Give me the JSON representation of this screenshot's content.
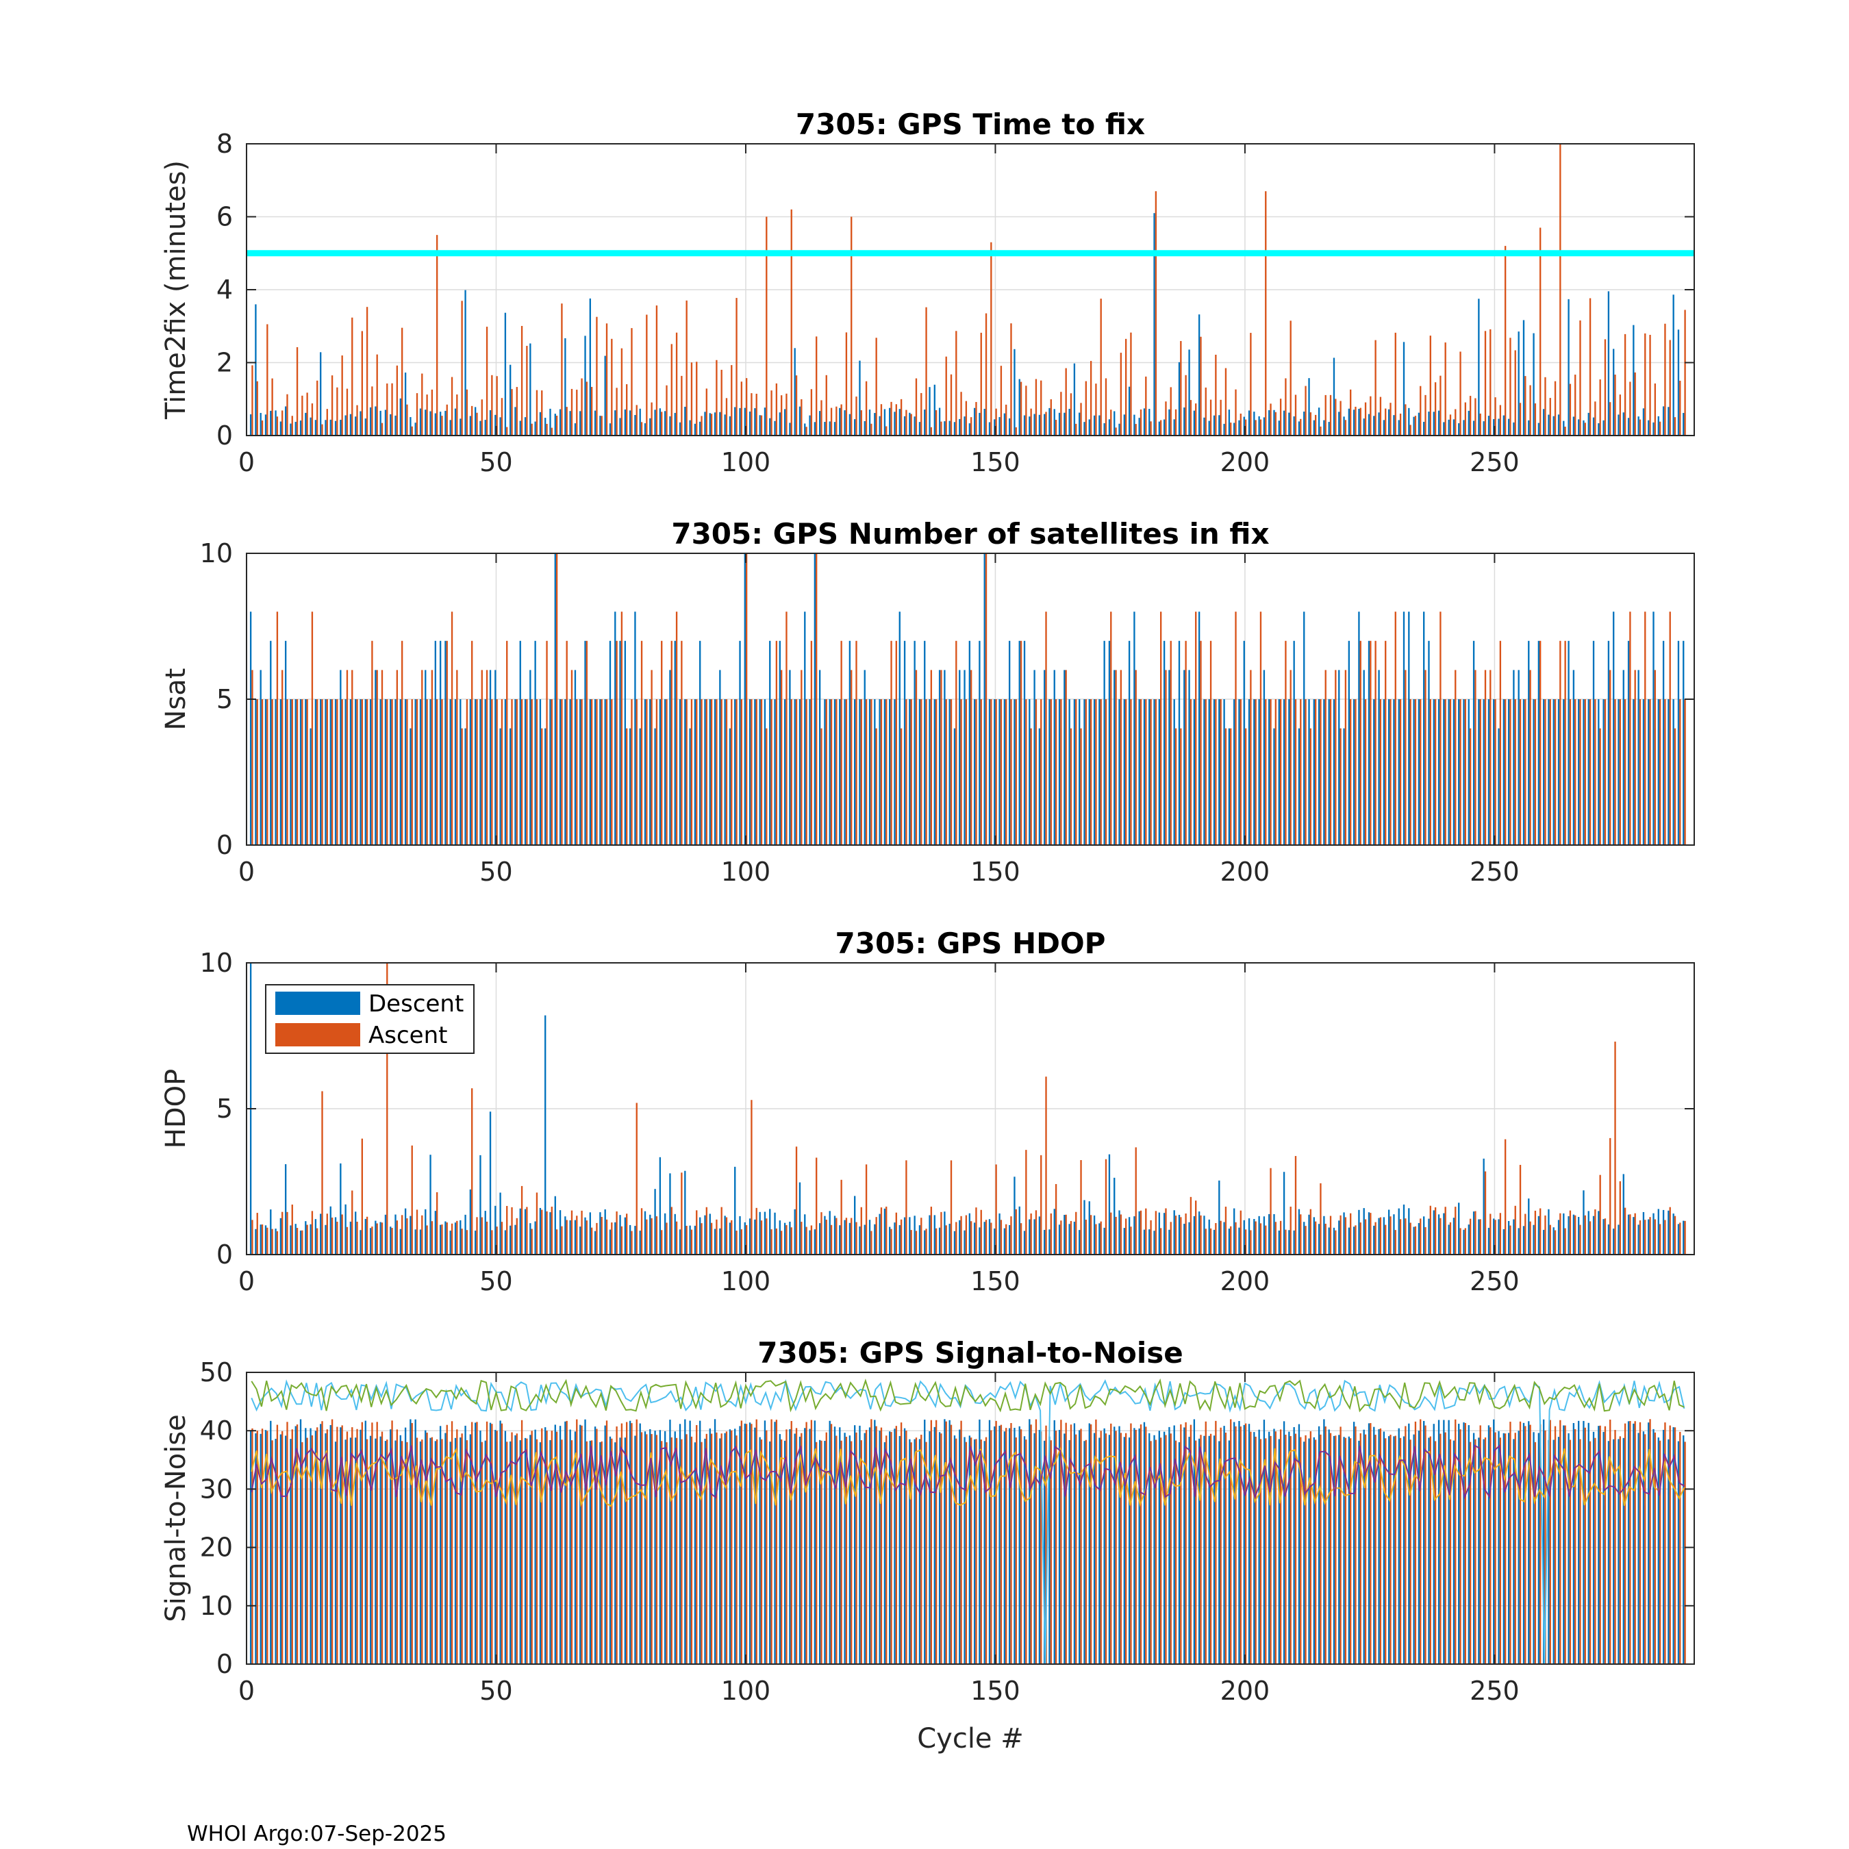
{
  "footer": "WHOI Argo:07-Sep-2025",
  "colors": {
    "descent": "#0072BD",
    "ascent": "#D95319",
    "threshold": "#00FFFF",
    "grid": "#DCDCDC",
    "axes": "#262626",
    "snr_lines": [
      "#4DBEEE",
      "#77AC30",
      "#EDB120",
      "#7E2F8E"
    ]
  },
  "legend": {
    "descent": "Descent",
    "ascent": "Ascent"
  },
  "chart_data": [
    {
      "type": "bar",
      "title": "7305: GPS Time to fix",
      "xlabel": "",
      "ylabel": "Time2fix (minutes)",
      "xlim": [
        0,
        290
      ],
      "ylim": [
        0,
        8
      ],
      "xticks": [
        "0",
        "50",
        "100",
        "150",
        "200",
        "250"
      ],
      "yticks": [
        "0",
        "2",
        "4",
        "6",
        "8"
      ],
      "threshold": 5,
      "series_summary": {
        "descent": {
          "typical": 0.8,
          "max": 6.1,
          "cycles_max": [
            182
          ]
        },
        "ascent": {
          "typical": 2.0,
          "max": 8.0,
          "cycles_max": [
            263
          ]
        }
      },
      "notable_ascent": [
        {
          "x": 38,
          "y": 5.5
        },
        {
          "x": 104,
          "y": 6.0
        },
        {
          "x": 109,
          "y": 6.2
        },
        {
          "x": 121,
          "y": 6.0
        },
        {
          "x": 149,
          "y": 5.3
        },
        {
          "x": 182,
          "y": 6.7
        },
        {
          "x": 204,
          "y": 6.7
        },
        {
          "x": 252,
          "y": 5.2
        },
        {
          "x": 259,
          "y": 5.7
        },
        {
          "x": 263,
          "y": 8.0
        }
      ]
    },
    {
      "type": "bar",
      "title": "7305: GPS Number of satellites in fix",
      "xlabel": "",
      "ylabel": "Nsat",
      "xlim": [
        0,
        290
      ],
      "ylim": [
        0,
        10
      ],
      "xticks": [
        "0",
        "50",
        "100",
        "150",
        "200",
        "250"
      ],
      "yticks": [
        "0",
        "5",
        "10"
      ],
      "series_summary": {
        "descent": {
          "typical": 5,
          "range": [
            4,
            10
          ]
        },
        "ascent": {
          "typical": 5,
          "range": [
            3,
            10
          ]
        }
      },
      "notable": [
        {
          "x": 62,
          "y": 10
        },
        {
          "x": 100,
          "y": 10
        },
        {
          "x": 114,
          "y": 10
        },
        {
          "x": 148,
          "y": 10
        }
      ]
    },
    {
      "type": "bar",
      "title": "7305: GPS HDOP",
      "xlabel": "",
      "ylabel": "HDOP",
      "xlim": [
        0,
        290
      ],
      "ylim": [
        0,
        10
      ],
      "xticks": [
        "0",
        "50",
        "100",
        "150",
        "200",
        "250"
      ],
      "yticks": [
        "0",
        "5",
        "10"
      ],
      "legend": [
        "Descent",
        "Ascent"
      ],
      "legend_position": "top-left",
      "series_summary": {
        "descent": {
          "typical": 1.1
        },
        "ascent": {
          "typical": 1.2
        }
      },
      "notable": [
        {
          "x": 1,
          "y": 10,
          "series": "Descent"
        },
        {
          "x": 15,
          "y": 5.6,
          "series": "Ascent"
        },
        {
          "x": 28,
          "y": 10,
          "series": "Ascent"
        },
        {
          "x": 45,
          "y": 5.7,
          "series": "Ascent"
        },
        {
          "x": 49,
          "y": 4.9,
          "series": "Descent"
        },
        {
          "x": 60,
          "y": 8.2,
          "series": "Descent"
        },
        {
          "x": 78,
          "y": 5.2,
          "series": "Ascent"
        },
        {
          "x": 101,
          "y": 5.3,
          "series": "Ascent"
        },
        {
          "x": 160,
          "y": 6.1,
          "series": "Ascent"
        },
        {
          "x": 274,
          "y": 7.3,
          "series": "Ascent"
        }
      ]
    },
    {
      "type": "bar+line",
      "title": "7305: GPS Signal-to-Noise",
      "xlabel": "Cycle #",
      "ylabel": "Signal-to-Noise",
      "xlim": [
        0,
        290
      ],
      "ylim": [
        0,
        50
      ],
      "xticks": [
        "0",
        "50",
        "100",
        "150",
        "200",
        "250"
      ],
      "yticks": [
        "0",
        "10",
        "20",
        "30",
        "40",
        "50"
      ],
      "series_summary": {
        "bars_descent": {
          "typical": 40
        },
        "bars_ascent": {
          "typical": 40
        },
        "line_1": {
          "typical": 46
        },
        "line_2": {
          "typical": 46
        },
        "line_3": {
          "typical": 32
        },
        "line_4": {
          "typical": 33
        }
      },
      "notable": [
        {
          "x": 160,
          "y": 0
        },
        {
          "x": 260,
          "y": 0
        }
      ]
    }
  ]
}
